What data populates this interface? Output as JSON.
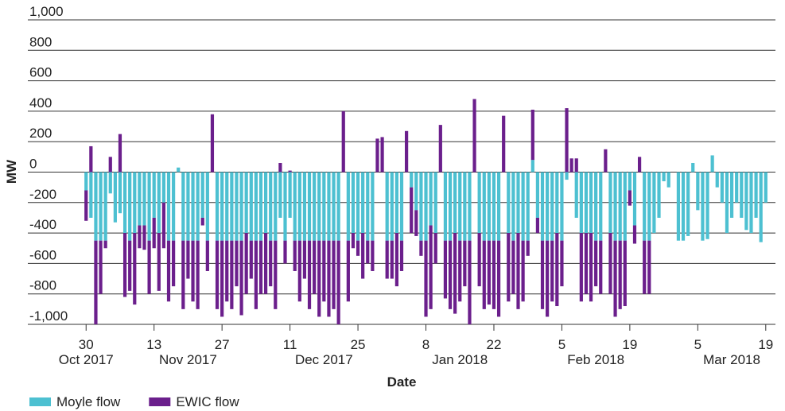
{
  "chart_data": {
    "type": "stacked_bar",
    "x_label": "Date",
    "y_label": "MW",
    "x": [
      "2017-10-30",
      "2017-10-31",
      "2017-11-01",
      "2017-11-02",
      "2017-11-03",
      "2017-11-04",
      "2017-11-05",
      "2017-11-06",
      "2017-11-07",
      "2017-11-08",
      "2017-11-09",
      "2017-11-10",
      "2017-11-11",
      "2017-11-12",
      "2017-11-13",
      "2017-11-14",
      "2017-11-15",
      "2017-11-16",
      "2017-11-17",
      "2017-11-18",
      "2017-11-19",
      "2017-11-20",
      "2017-11-21",
      "2017-11-22",
      "2017-11-23",
      "2017-11-24",
      "2017-11-25",
      "2017-11-26",
      "2017-11-27",
      "2017-11-28",
      "2017-11-29",
      "2017-11-30",
      "2017-12-01",
      "2017-12-02",
      "2017-12-03",
      "2017-12-04",
      "2017-12-05",
      "2017-12-06",
      "2017-12-07",
      "2017-12-08",
      "2017-12-09",
      "2017-12-10",
      "2017-12-11",
      "2017-12-12",
      "2017-12-13",
      "2017-12-14",
      "2017-12-15",
      "2017-12-16",
      "2017-12-17",
      "2017-12-18",
      "2017-12-19",
      "2017-12-20",
      "2017-12-21",
      "2017-12-22",
      "2017-12-23",
      "2017-12-24",
      "2017-12-25",
      "2017-12-26",
      "2017-12-27",
      "2017-12-28",
      "2017-12-29",
      "2017-12-30",
      "2017-12-31",
      "2018-01-01",
      "2018-01-02",
      "2018-01-03",
      "2018-01-04",
      "2018-01-05",
      "2018-01-06",
      "2018-01-07",
      "2018-01-08",
      "2018-01-09",
      "2018-01-10",
      "2018-01-11",
      "2018-01-12",
      "2018-01-13",
      "2018-01-14",
      "2018-01-15",
      "2018-01-16",
      "2018-01-17",
      "2018-01-18",
      "2018-01-19",
      "2018-01-20",
      "2018-01-21",
      "2018-01-22",
      "2018-01-23",
      "2018-01-24",
      "2018-01-25",
      "2018-01-26",
      "2018-01-27",
      "2018-01-28",
      "2018-01-29",
      "2018-01-30",
      "2018-01-31",
      "2018-02-01",
      "2018-02-02",
      "2018-02-03",
      "2018-02-04",
      "2018-02-05",
      "2018-02-06",
      "2018-02-07",
      "2018-02-08",
      "2018-02-09",
      "2018-02-10",
      "2018-02-11",
      "2018-02-12",
      "2018-02-13",
      "2018-02-14",
      "2018-02-15",
      "2018-02-16",
      "2018-02-17",
      "2018-02-18",
      "2018-02-19",
      "2018-02-20",
      "2018-02-21",
      "2018-02-22",
      "2018-02-23",
      "2018-02-24",
      "2018-02-25",
      "2018-02-26",
      "2018-02-27",
      "2018-02-28",
      "2018-03-01",
      "2018-03-02",
      "2018-03-03",
      "2018-03-04",
      "2018-03-05",
      "2018-03-06",
      "2018-03-07",
      "2018-03-08",
      "2018-03-09",
      "2018-03-10",
      "2018-03-11",
      "2018-03-12",
      "2018-03-13",
      "2018-03-14",
      "2018-03-15",
      "2018-03-16",
      "2018-03-17",
      "2018-03-18",
      "2018-03-19"
    ],
    "series": [
      {
        "name": "Moyle flow",
        "color": "#4dc0d1",
        "values": [
          -120,
          -300,
          -450,
          -450,
          -450,
          -140,
          -330,
          -270,
          -400,
          -450,
          -400,
          -350,
          -350,
          -450,
          -300,
          -400,
          -200,
          -450,
          -450,
          30,
          -450,
          -450,
          -450,
          -450,
          -300,
          -450,
          0,
          -450,
          -450,
          -450,
          -450,
          -450,
          -450,
          -400,
          -450,
          -450,
          -450,
          -400,
          -450,
          -450,
          -300,
          -450,
          -300,
          -450,
          -450,
          -450,
          -450,
          -450,
          -450,
          -450,
          -450,
          -450,
          -450,
          0,
          -450,
          -400,
          -450,
          -400,
          -450,
          -450,
          0,
          0,
          -450,
          -450,
          -400,
          -450,
          0,
          -100,
          -250,
          -450,
          -450,
          -350,
          -400,
          0,
          -450,
          -450,
          -400,
          -450,
          -450,
          -450,
          0,
          -400,
          -450,
          -450,
          -450,
          -450,
          0,
          -400,
          -450,
          -400,
          -450,
          -450,
          80,
          -300,
          -450,
          -450,
          -450,
          -400,
          -450,
          -50,
          0,
          -300,
          -400,
          -400,
          -400,
          -450,
          -450,
          0,
          -400,
          -450,
          -450,
          -450,
          -120,
          -350,
          0,
          -450,
          -450,
          -400,
          -300,
          -60,
          -100,
          null,
          -450,
          -450,
          -420,
          60,
          -250,
          -450,
          -440,
          110,
          -100,
          -200,
          -400,
          -300,
          -200,
          -300,
          -380,
          -400,
          -300,
          -460,
          -200
        ]
      },
      {
        "name": "EWIC flow",
        "color": "#6b1f8c",
        "values": [
          -200,
          170,
          -550,
          -350,
          -50,
          100,
          0,
          250,
          -420,
          -330,
          -470,
          -150,
          -160,
          -350,
          -200,
          -380,
          -300,
          -400,
          -300,
          0,
          -450,
          -250,
          -400,
          -450,
          -50,
          -200,
          380,
          -450,
          -500,
          -400,
          -450,
          -300,
          -490,
          -400,
          -250,
          -450,
          -350,
          -400,
          -300,
          -450,
          60,
          -150,
          10,
          -200,
          -400,
          -250,
          -450,
          -350,
          -500,
          -400,
          -500,
          -450,
          -550,
          400,
          -400,
          -100,
          -100,
          -300,
          -150,
          -200,
          220,
          230,
          -250,
          -250,
          -350,
          -200,
          270,
          -300,
          -170,
          -100,
          -500,
          -550,
          -200,
          310,
          -380,
          -450,
          -530,
          -400,
          -300,
          -550,
          480,
          -350,
          -450,
          -420,
          -450,
          -500,
          370,
          -450,
          -350,
          -500,
          -400,
          -100,
          330,
          -100,
          -450,
          -500,
          -400,
          -480,
          -300,
          420,
          90,
          90,
          -450,
          -400,
          -450,
          -300,
          -350,
          150,
          -400,
          -500,
          -450,
          -430,
          -100,
          -120,
          100,
          -350,
          -350,
          null,
          null,
          null,
          null,
          null,
          null,
          null,
          null,
          null,
          null,
          null,
          null,
          null,
          null,
          null,
          null,
          null,
          null,
          null,
          null,
          null,
          null,
          null,
          null
        ]
      }
    ],
    "xlim": [
      "2017-10-18",
      "2018-03-21"
    ],
    "xticks": [
      {
        "value": "2017-10-30",
        "label": "30"
      },
      {
        "value": "2017-11-13",
        "label": "13"
      },
      {
        "value": "2017-11-27",
        "label": "27"
      },
      {
        "value": "2017-12-11",
        "label": "11"
      },
      {
        "value": "2017-12-25",
        "label": "25"
      },
      {
        "value": "2018-01-08",
        "label": "8"
      },
      {
        "value": "2018-01-22",
        "label": "22"
      },
      {
        "value": "2018-02-05",
        "label": "5"
      },
      {
        "value": "2018-02-19",
        "label": "19"
      },
      {
        "value": "2018-03-05",
        "label": "5"
      },
      {
        "value": "2018-03-19",
        "label": "19"
      }
    ],
    "month_labels": [
      {
        "value": "2017-10-30",
        "label": "Oct 2017"
      },
      {
        "value": "2017-11-20",
        "label": "Nov 2017"
      },
      {
        "value": "2017-12-18",
        "label": "Dec 2017"
      },
      {
        "value": "2018-01-15",
        "label": "Jan 2018"
      },
      {
        "value": "2018-02-12",
        "label": "Feb 2018"
      },
      {
        "value": "2018-03-12",
        "label": "Mar 2018"
      }
    ],
    "ylim": [
      -1000,
      1000
    ],
    "yticks": [
      {
        "value": 1000,
        "label": "1,000"
      },
      800,
      600,
      400,
      200,
      0,
      -200,
      -400,
      -600,
      -800,
      {
        "value": -1000,
        "label": "-1,000"
      }
    ],
    "grid": true
  }
}
